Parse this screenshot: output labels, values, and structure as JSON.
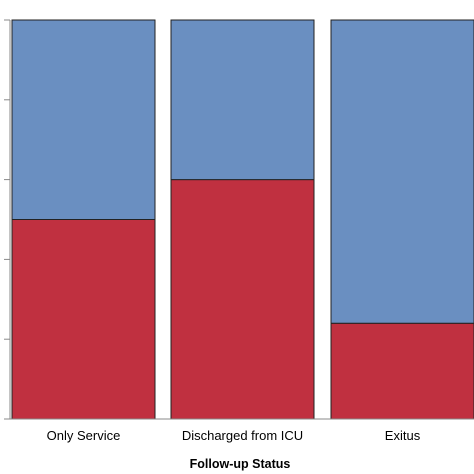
{
  "chart_data": {
    "type": "bar",
    "stacked": true,
    "percent": true,
    "categories": [
      "Only Service",
      "Discharged from ICU",
      "Exitus"
    ],
    "series": [
      {
        "values": [
          50,
          60,
          24
        ],
        "color": "#c03040"
      },
      {
        "values": [
          50,
          40,
          76
        ],
        "color": "#6a8fc1"
      }
    ],
    "xlabel": "Follow-up Status",
    "ylim": [
      0,
      100
    ],
    "grid": false
  }
}
